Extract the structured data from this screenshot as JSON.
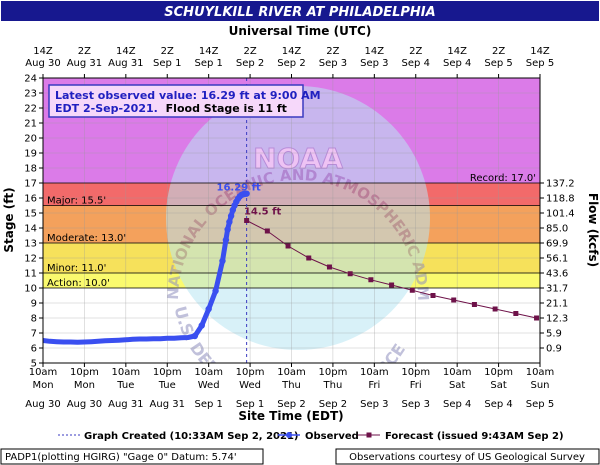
{
  "colors": {
    "title_bg": "#17188f",
    "title_fg": "#ffffff",
    "major": "#f26a6a",
    "moderate": "#f4a15c",
    "minor": "#f6e15b",
    "action": "#fafa6e",
    "above_record": "#db7be8",
    "observed": "#3a4ff0",
    "forecast": "#6e1249",
    "noaa_light": "#b9e7f4",
    "infobox_border": "#3a3ac0",
    "infobox_text": "#2020c0"
  },
  "chart_data": {
    "type": "line",
    "title": "SCHUYLKILL RIVER AT PHILADELPHIA",
    "top_axis_title": "Universal Time (UTC)",
    "xlabel": "Site Time (EDT)",
    "ylabel": "Stage (ft)",
    "y2label": "Flow (kcfs)",
    "ylim": [
      5,
      24
    ],
    "xlim_hours_from_aug30_10am": [
      0,
      144
    ],
    "top_ticks": [
      {
        "t": "14Z",
        "d": "Aug 30"
      },
      {
        "t": "2Z",
        "d": "Aug 31"
      },
      {
        "t": "14Z",
        "d": "Aug 31"
      },
      {
        "t": "2Z",
        "d": "Sep 1"
      },
      {
        "t": "14Z",
        "d": "Sep 1"
      },
      {
        "t": "2Z",
        "d": "Sep 2"
      },
      {
        "t": "14Z",
        "d": "Sep 2"
      },
      {
        "t": "2Z",
        "d": "Sep 3"
      },
      {
        "t": "14Z",
        "d": "Sep 3"
      },
      {
        "t": "2Z",
        "d": "Sep 4"
      },
      {
        "t": "14Z",
        "d": "Sep 4"
      },
      {
        "t": "2Z",
        "d": "Sep 5"
      },
      {
        "t": "14Z",
        "d": "Sep 5"
      }
    ],
    "bottom_ticks": [
      {
        "t": "10am",
        "w": "Mon",
        "d": "Aug 30"
      },
      {
        "t": "10pm",
        "w": "Mon",
        "d": "Aug 30"
      },
      {
        "t": "10am",
        "w": "Tue",
        "d": "Aug 31"
      },
      {
        "t": "10pm",
        "w": "Tue",
        "d": "Aug 31"
      },
      {
        "t": "10am",
        "w": "Wed",
        "d": "Sep 1"
      },
      {
        "t": "10pm",
        "w": "Wed",
        "d": "Sep 1"
      },
      {
        "t": "10am",
        "w": "Thu",
        "d": "Sep 2"
      },
      {
        "t": "10pm",
        "w": "Thu",
        "d": "Sep 2"
      },
      {
        "t": "10am",
        "w": "Fri",
        "d": "Sep 3"
      },
      {
        "t": "10pm",
        "w": "Fri",
        "d": "Sep 3"
      },
      {
        "t": "10am",
        "w": "Sat",
        "d": "Sep 4"
      },
      {
        "t": "10pm",
        "w": "Sat",
        "d": "Sep 4"
      },
      {
        "t": "10am",
        "w": "Sun",
        "d": "Sep 5"
      }
    ],
    "y_ticks": [
      5,
      6,
      7,
      8,
      9,
      10,
      11,
      12,
      13,
      14,
      15,
      16,
      17,
      18,
      19,
      20,
      21,
      22,
      23,
      24
    ],
    "flow_ticks": [
      {
        "stage": 6,
        "label": "0.9"
      },
      {
        "stage": 7,
        "label": "5.9"
      },
      {
        "stage": 8,
        "label": "12.3"
      },
      {
        "stage": 9,
        "label": "21.1"
      },
      {
        "stage": 10,
        "label": "31.7"
      },
      {
        "stage": 11,
        "label": "43.6"
      },
      {
        "stage": 12,
        "label": "56.1"
      },
      {
        "stage": 13,
        "label": "69.9"
      },
      {
        "stage": 14,
        "label": "85.0"
      },
      {
        "stage": 15,
        "label": "101.4"
      },
      {
        "stage": 16,
        "label": "118.8"
      },
      {
        "stage": 17,
        "label": "137.2"
      }
    ],
    "bands": [
      {
        "name": "action",
        "from": 10,
        "to": 11,
        "label": "Action: 10.0'"
      },
      {
        "name": "minor",
        "from": 11,
        "to": 13,
        "label": "Minor: 11.0'"
      },
      {
        "name": "moderate",
        "from": 13,
        "to": 15.5,
        "label": "Moderate: 13.0'"
      },
      {
        "name": "major",
        "from": 15.5,
        "to": 17,
        "label": "Major: 15.5'"
      },
      {
        "name": "above_record",
        "from": 17,
        "to": 24,
        "label": "Record: 17.0'"
      }
    ],
    "graph_created_hour": 59,
    "observed_label": "16.29 ft",
    "forecast_label": "14.5 ft",
    "series": [
      {
        "name": "Observed",
        "hours": [
          0,
          2,
          4,
          6,
          8,
          10,
          12,
          14,
          16,
          18,
          20,
          22,
          24,
          26,
          28,
          30,
          32,
          34,
          36,
          38,
          40,
          42,
          44,
          46,
          48,
          50,
          52,
          53,
          53.5,
          54,
          54.5,
          55,
          55.5,
          56,
          56.5,
          57,
          57.5,
          58,
          58.5,
          59
        ],
        "stage": [
          6.5,
          6.45,
          6.42,
          6.4,
          6.4,
          6.38,
          6.4,
          6.42,
          6.45,
          6.48,
          6.5,
          6.52,
          6.55,
          6.58,
          6.6,
          6.6,
          6.62,
          6.62,
          6.65,
          6.65,
          6.68,
          6.7,
          6.8,
          7.5,
          8.6,
          9.8,
          11.8,
          13.2,
          13.9,
          14.4,
          14.8,
          15.2,
          15.5,
          15.75,
          15.95,
          16.1,
          16.2,
          16.25,
          16.28,
          16.29
        ]
      },
      {
        "name": "Forecast",
        "hours": [
          59,
          65,
          71,
          77,
          83,
          89,
          95,
          101,
          107,
          113,
          119,
          125,
          131,
          137,
          143
        ],
        "stage": [
          14.5,
          13.8,
          12.8,
          12.0,
          11.4,
          10.95,
          10.55,
          10.2,
          9.85,
          9.5,
          9.2,
          8.9,
          8.6,
          8.3,
          8.0
        ]
      }
    ]
  },
  "infobox": {
    "line1": "Latest observed value: 16.29 ft at 9:00 AM",
    "line2": "EDT 2-Sep-2021.",
    "line2b": "Flood Stage is 11 ft"
  },
  "legend": {
    "created": "Graph Created (10:33AM Sep 2, 2021)",
    "observed": "Observed",
    "forecast": "Forecast (issued 9:43AM Sep 2)"
  },
  "footer": {
    "left": "PADP1(plotting HGIRG) \"Gage 0\" Datum: 5.74'",
    "right": "Observations courtesy of US Geological Survey"
  },
  "watermark": {
    "top": "NATIONAL OCEANIC AND ATMOSPHERIC ADMINISTRATION",
    "bottom": "U.S. DEPARTMENT OF COMMERCE",
    "center": "NOAA"
  }
}
